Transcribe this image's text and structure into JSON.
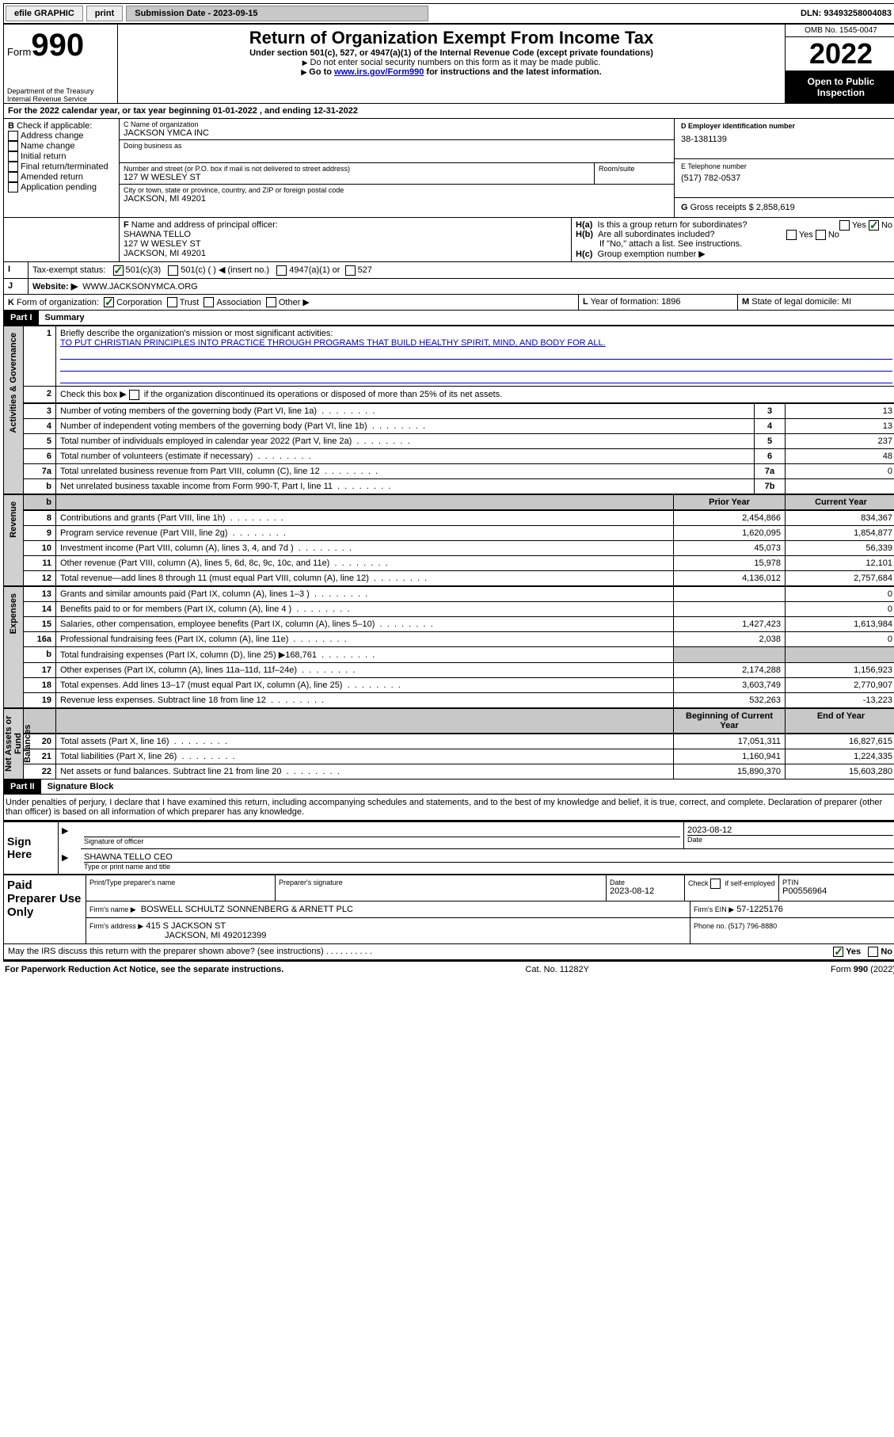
{
  "topbar": {
    "efile_label": "efile GRAPHIC",
    "print_label": "print",
    "submission_label": "Submission Date - 2023-09-15",
    "dln_label": "DLN: 93493258004083"
  },
  "header": {
    "form_label": "Form",
    "form_number": "990",
    "dept": "Department of the Treasury",
    "irs": "Internal Revenue Service",
    "title": "Return of Organization Exempt From Income Tax",
    "subtitle": "Under section 501(c), 527, or 4947(a)(1) of the Internal Revenue Code (except private foundations)",
    "note1": "Do not enter social security numbers on this form as it may be made public.",
    "note2_pre": "Go to ",
    "note2_link": "www.irs.gov/Form990",
    "note2_post": " for instructions and the latest information.",
    "omb": "OMB No. 1545-0047",
    "year": "2022",
    "inspect1": "Open to Public",
    "inspect2": "Inspection"
  },
  "secA": {
    "line": "For the 2022 calendar year, or tax year beginning 01-01-2022   , and ending 12-31-2022",
    "B_label": "B",
    "B_text": " Check if applicable:",
    "B_opts": [
      "Address change",
      "Name change",
      "Initial return",
      "Final return/terminated",
      "Amended return",
      "Application pending"
    ],
    "C_nameorg_label": "C Name of organization",
    "C_nameorg": "JACKSON YMCA INC",
    "dba_label": "Doing business as",
    "addr_label": "Number and street (or P.O. box if mail is not delivered to street address)",
    "room_label": "Room/suite",
    "addr": "127 W WESLEY ST",
    "city_label": "City or town, state or province, country, and ZIP or foreign postal code",
    "city": "JACKSON, MI  49201",
    "D_label": "D Employer identification number",
    "D_val": "38-1381139",
    "E_label": "E Telephone number",
    "E_val": "(517) 782-0537",
    "G_label": "G",
    "G_text": " Gross receipts $ 2,858,619",
    "F_label": "F",
    "F_text": " Name and address of principal officer:",
    "F_name": "SHAWNA TELLO",
    "F_addr1": "127 W WESLEY ST",
    "F_addr2": "JACKSON, MI  49201",
    "Ha_label": "H(a)",
    "Ha_text": "Is this a group return for subordinates?",
    "Hb_label": "H(b)",
    "Hb_text": "Are all subordinates included?",
    "Hb_note": "If \"No,\" attach a list. See instructions.",
    "Hc_label": "H(c)",
    "Hc_text": "Group exemption number ▶",
    "yes": "Yes",
    "no": "No",
    "I_label": "I",
    "I_text": "Tax-exempt status:",
    "I_501c3": "501(c)(3)",
    "I_501c": "501(c) (  ) ◀ (insert no.)",
    "I_4947": "4947(a)(1) or",
    "I_527": "527",
    "J_label": "J",
    "J_text": "Website: ▶",
    "J_val": "WWW.JACKSONYMCA.ORG",
    "K_label": "K",
    "K_text": " Form of organization:",
    "K_corp": "Corporation",
    "K_trust": "Trust",
    "K_assoc": "Association",
    "K_other": "Other ▶",
    "L_label": "L",
    "L_text": " Year of formation: 1896",
    "M_label": "M",
    "M_text": " State of legal domicile: MI"
  },
  "part1": {
    "label": "Part I",
    "title": "Summary",
    "line1_label": "1",
    "line1_text": "Briefly describe the organization's mission or most significant activities:",
    "line1_val": "TO PUT CHRISTIAN PRINCIPLES INTO PRACTICE THROUGH PROGRAMS THAT BUILD HEALTHY SPIRIT, MIND, AND BODY FOR ALL.",
    "line2_label": "2",
    "line2_text": "Check this box ▶",
    "line2_post": " if the organization discontinued its operations or disposed of more than 25% of its net assets.",
    "tabs": {
      "gov": "Activities & Governance",
      "rev": "Revenue",
      "exp": "Expenses",
      "net": "Net Assets or Fund Balances"
    },
    "rows_top": [
      {
        "n": "3",
        "t": "Number of voting members of the governing body (Part VI, line 1a)",
        "box": "3",
        "v": "13"
      },
      {
        "n": "4",
        "t": "Number of independent voting members of the governing body (Part VI, line 1b)",
        "box": "4",
        "v": "13"
      },
      {
        "n": "5",
        "t": "Total number of individuals employed in calendar year 2022 (Part V, line 2a)",
        "box": "5",
        "v": "237"
      },
      {
        "n": "6",
        "t": "Total number of volunteers (estimate if necessary)",
        "box": "6",
        "v": "48"
      },
      {
        "n": "7a",
        "t": "Total unrelated business revenue from Part VIII, column (C), line 12",
        "box": "7a",
        "v": "0"
      },
      {
        "n": "b",
        "t": "Net unrelated business taxable income from Form 990-T, Part I, line 11",
        "box": "7b",
        "v": ""
      }
    ],
    "col_prior": "Prior Year",
    "col_current": "Current Year",
    "rows_rev": [
      {
        "n": "8",
        "t": "Contributions and grants (Part VIII, line 1h)",
        "p": "2,454,866",
        "c": "834,367"
      },
      {
        "n": "9",
        "t": "Program service revenue (Part VIII, line 2g)",
        "p": "1,620,095",
        "c": "1,854,877"
      },
      {
        "n": "10",
        "t": "Investment income (Part VIII, column (A), lines 3, 4, and 7d )",
        "p": "45,073",
        "c": "56,339"
      },
      {
        "n": "11",
        "t": "Other revenue (Part VIII, column (A), lines 5, 6d, 8c, 9c, 10c, and 11e)",
        "p": "15,978",
        "c": "12,101"
      },
      {
        "n": "12",
        "t": "Total revenue—add lines 8 through 11 (must equal Part VIII, column (A), line 12)",
        "p": "4,136,012",
        "c": "2,757,684"
      }
    ],
    "rows_exp": [
      {
        "n": "13",
        "t": "Grants and similar amounts paid (Part IX, column (A), lines 1–3 )",
        "p": "",
        "c": "0"
      },
      {
        "n": "14",
        "t": "Benefits paid to or for members (Part IX, column (A), line 4 )",
        "p": "",
        "c": "0"
      },
      {
        "n": "15",
        "t": "Salaries, other compensation, employee benefits (Part IX, column (A), lines 5–10)",
        "p": "1,427,423",
        "c": "1,613,984"
      },
      {
        "n": "16a",
        "t": "Professional fundraising fees (Part IX, column (A), line 11e)",
        "p": "2,038",
        "c": "0"
      },
      {
        "n": "b",
        "t": "Total fundraising expenses (Part IX, column (D), line 25) ▶168,761",
        "p": "GREY",
        "c": "GREY"
      },
      {
        "n": "17",
        "t": "Other expenses (Part IX, column (A), lines 11a–11d, 11f–24e)",
        "p": "2,174,288",
        "c": "1,156,923"
      },
      {
        "n": "18",
        "t": "Total expenses. Add lines 13–17 (must equal Part IX, column (A), line 25)",
        "p": "3,603,749",
        "c": "2,770,907"
      },
      {
        "n": "19",
        "t": "Revenue less expenses. Subtract line 18 from line 12",
        "p": "532,263",
        "c": "-13,223"
      }
    ],
    "col_begin": "Beginning of Current Year",
    "col_end": "End of Year",
    "rows_net": [
      {
        "n": "20",
        "t": "Total assets (Part X, line 16)",
        "p": "17,051,311",
        "c": "16,827,615"
      },
      {
        "n": "21",
        "t": "Total liabilities (Part X, line 26)",
        "p": "1,160,941",
        "c": "1,224,335"
      },
      {
        "n": "22",
        "t": "Net assets or fund balances. Subtract line 21 from line 20",
        "p": "15,890,370",
        "c": "15,603,280"
      }
    ]
  },
  "part2": {
    "label": "Part II",
    "title": "Signature Block",
    "decl": "Under penalties of perjury, I declare that I have examined this return, including accompanying schedules and statements, and to the best of my knowledge and belief, it is true, correct, and complete. Declaration of preparer (other than officer) is based on all information of which preparer has any knowledge.",
    "sign_here": "Sign Here",
    "sig_officer": "Signature of officer",
    "sig_date": "Date",
    "sig_date_val": "2023-08-12",
    "sig_name": "SHAWNA TELLO CEO",
    "sig_name_label": "Type or print name and title",
    "paid": "Paid Preparer Use Only",
    "prep_name_label": "Print/Type preparer's name",
    "prep_sig_label": "Preparer's signature",
    "prep_date_label": "Date",
    "prep_date": "2023-08-12",
    "self_emp": "Check         if self-employed",
    "ptin_label": "PTIN",
    "ptin": "P00556964",
    "firm_name_label": "Firm's name     ▶",
    "firm_name": "BOSWELL SCHULTZ SONNENBERG & ARNETT PLC",
    "firm_ein_label": "Firm's EIN ▶",
    "firm_ein": "57-1225176",
    "firm_addr_label": "Firm's address ▶",
    "firm_addr1": "415 S JACKSON ST",
    "firm_addr2": "JACKSON, MI  492012399",
    "phone_label": "Phone no. (517) 796-8880",
    "discuss": "May the IRS discuss this return with the preparer shown above? (see instructions)"
  },
  "footer": {
    "left": "For Paperwork Reduction Act Notice, see the separate instructions.",
    "center": "Cat. No. 11282Y",
    "right": "Form 990 (2022)"
  }
}
